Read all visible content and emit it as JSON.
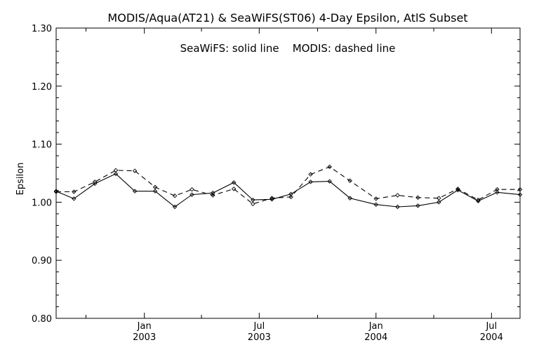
{
  "chart_data": {
    "type": "line",
    "title": "MODIS/Aqua(AT21) & SeaWiFS(ST06) 4-Day Epsilon, AtlS Subset",
    "annotation": "SeaWiFS: solid line    MODIS: dashed line",
    "ylabel": "Epsilon",
    "xlabel": "",
    "ylim": [
      0.8,
      1.3
    ],
    "xlim": [
      "2002-08-15",
      "2004-08-15"
    ],
    "y_ticks": [
      "0.80",
      "0.90",
      "1.00",
      "1.10",
      "1.20",
      "1.30"
    ],
    "x_ticks": [
      {
        "date": "2003-01-01",
        "month": "Jan",
        "year": "2003"
      },
      {
        "date": "2003-07-01",
        "month": "Jul",
        "year": "2003"
      },
      {
        "date": "2004-01-01",
        "month": "Jan",
        "year": "2004"
      },
      {
        "date": "2004-07-01",
        "month": "Jul",
        "year": "2004"
      }
    ],
    "grid": false,
    "series": [
      {
        "name": "SeaWiFS",
        "style": "solid",
        "color": "#000000",
        "points": [
          [
            "2002-08-15",
            1.019
          ],
          [
            "2002-09-12",
            1.006
          ],
          [
            "2002-10-15",
            1.032
          ],
          [
            "2002-11-17",
            1.049
          ],
          [
            "2002-12-17",
            1.019
          ],
          [
            "2003-01-18",
            1.019
          ],
          [
            "2003-02-18",
            0.992
          ],
          [
            "2003-03-17",
            1.013
          ],
          [
            "2003-04-19",
            1.016
          ],
          [
            "2003-05-22",
            1.034
          ],
          [
            "2003-06-21",
            1.004
          ],
          [
            "2003-07-21",
            1.005
          ],
          [
            "2003-08-20",
            1.014
          ],
          [
            "2003-09-20",
            1.035
          ],
          [
            "2003-10-20",
            1.036
          ],
          [
            "2003-11-21",
            1.007
          ],
          [
            "2004-01-01",
            0.996
          ],
          [
            "2004-02-04",
            0.992
          ],
          [
            "2004-03-07",
            0.994
          ],
          [
            "2004-04-09",
            1.0
          ],
          [
            "2004-05-09",
            1.021
          ],
          [
            "2004-06-10",
            1.002
          ],
          [
            "2004-07-10",
            1.017
          ],
          [
            "2004-08-15",
            1.013
          ]
        ]
      },
      {
        "name": "MODIS",
        "style": "dashed",
        "color": "#000000",
        "points": [
          [
            "2002-08-15",
            1.018
          ],
          [
            "2002-09-12",
            1.018
          ],
          [
            "2002-10-15",
            1.035
          ],
          [
            "2002-11-17",
            1.055
          ],
          [
            "2002-12-17",
            1.054
          ],
          [
            "2003-01-18",
            1.026
          ],
          [
            "2003-02-18",
            1.011
          ],
          [
            "2003-03-17",
            1.022
          ],
          [
            "2003-04-19",
            1.012
          ],
          [
            "2003-05-22",
            1.023
          ],
          [
            "2003-06-21",
            0.997
          ],
          [
            "2003-07-21",
            1.007
          ],
          [
            "2003-08-20",
            1.009
          ],
          [
            "2003-09-20",
            1.048
          ],
          [
            "2003-10-20",
            1.061
          ],
          [
            "2003-11-21",
            1.037
          ],
          [
            "2004-01-01",
            1.006
          ],
          [
            "2004-02-04",
            1.012
          ],
          [
            "2004-03-07",
            1.008
          ],
          [
            "2004-04-09",
            1.007
          ],
          [
            "2004-05-09",
            1.023
          ],
          [
            "2004-06-10",
            1.004
          ],
          [
            "2004-07-10",
            1.022
          ],
          [
            "2004-08-15",
            1.022
          ]
        ]
      }
    ]
  }
}
